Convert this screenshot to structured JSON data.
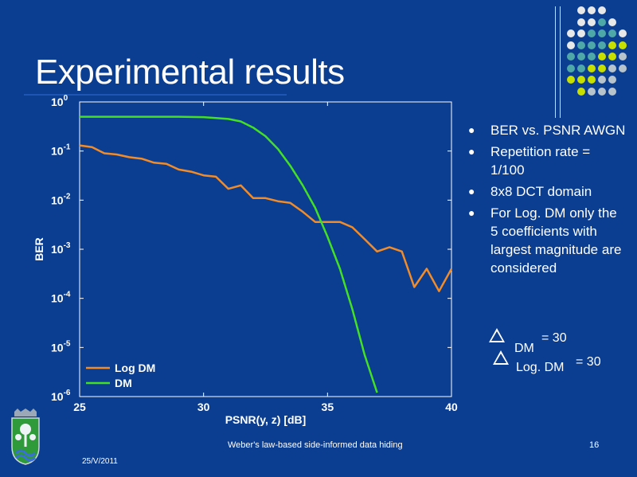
{
  "slide": {
    "title": "Experimental results",
    "footer_center": "Weber's law-based side-informed data hiding",
    "page_number": "16",
    "date": "25/V/2011"
  },
  "bullets": [
    "BER vs. PSNR AWGN",
    "Repetition rate = 1/100",
    "8x8 DCT domain",
    "For Log. DM only the 5 coefficients with largest magnitude are considered"
  ],
  "deltas": [
    {
      "label": "DM",
      "value": "= 30"
    },
    {
      "label": "Log. DM",
      "value": "= 30"
    }
  ],
  "icons": {
    "bullet": "bullet-dot-icon",
    "delta": "delta-triangle-icon",
    "logo": "municipal-coat-of-arms-icon"
  },
  "colors": {
    "background": "#0b3d91",
    "log_dm": "#f28c28",
    "dm": "#44e024",
    "dots": [
      "#e8e8e8",
      "#4fa8a8",
      "#c8e000",
      "#b8c4cc"
    ]
  },
  "chart_data": {
    "type": "line",
    "xlabel": "PSNR(y, z) [dB]",
    "ylabel": "BER",
    "xlim": [
      25,
      40
    ],
    "ylim": [
      1e-06,
      1
    ],
    "yscale": "log",
    "x_ticks": [
      "25",
      "30",
      "35",
      "40"
    ],
    "y_ticks": [
      {
        "base": "10",
        "exp": "0"
      },
      {
        "base": "10",
        "exp": "-1"
      },
      {
        "base": "10",
        "exp": "-2"
      },
      {
        "base": "10",
        "exp": "-3"
      },
      {
        "base": "10",
        "exp": "-4"
      },
      {
        "base": "10",
        "exp": "-5"
      },
      {
        "base": "10",
        "exp": "-6"
      }
    ],
    "legend_position": "bottom-left",
    "series": [
      {
        "name": "Log DM",
        "x": [
          25,
          25.5,
          26,
          26.5,
          27,
          27.5,
          28,
          28.5,
          29,
          29.5,
          30,
          30.5,
          31,
          31.5,
          32,
          32.5,
          33,
          33.5,
          34,
          34.5,
          35,
          35.5,
          36,
          36.5,
          37,
          37.5,
          38,
          38.5,
          39,
          39.5,
          40
        ],
        "y": [
          0.13,
          0.12,
          0.09,
          0.085,
          0.075,
          0.07,
          0.058,
          0.055,
          0.042,
          0.038,
          0.032,
          0.03,
          0.017,
          0.02,
          0.011,
          0.011,
          0.0095,
          0.0088,
          0.0058,
          0.0036,
          0.0036,
          0.0036,
          0.0028,
          0.0016,
          0.0009,
          0.0011,
          0.0009,
          0.00017,
          0.0004,
          0.00014,
          0.0004
        ]
      },
      {
        "name": "DM",
        "x": [
          25,
          27,
          29,
          30,
          31,
          31.5,
          32,
          32.5,
          33,
          33.5,
          34,
          34.5,
          35,
          35.5,
          36,
          36.5,
          37
        ],
        "y": [
          0.5,
          0.5,
          0.5,
          0.49,
          0.45,
          0.4,
          0.3,
          0.2,
          0.11,
          0.05,
          0.02,
          0.007,
          0.0018,
          0.0004,
          6e-05,
          7e-06,
          1.2e-06
        ]
      }
    ]
  }
}
